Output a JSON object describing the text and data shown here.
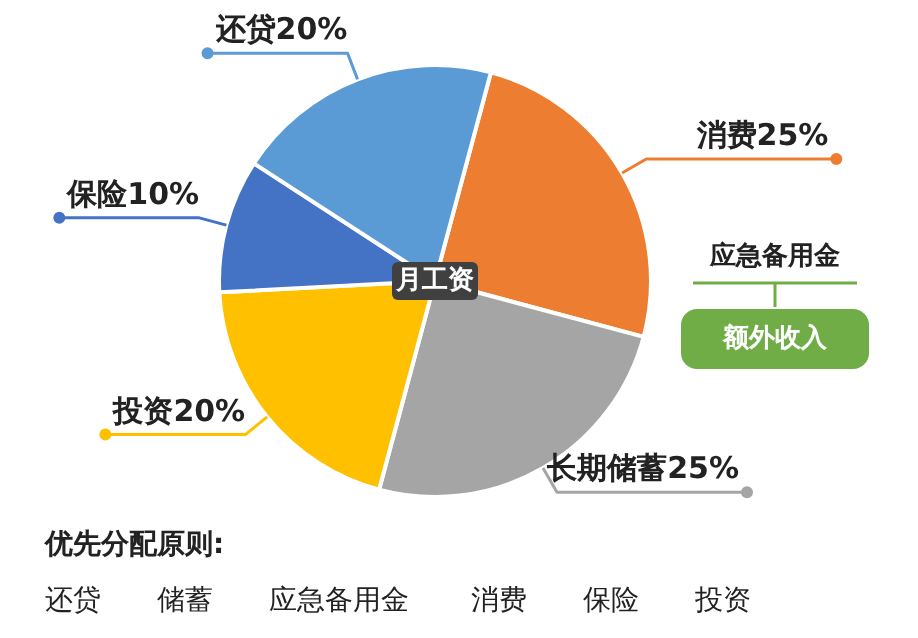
{
  "chart_data": {
    "type": "pie",
    "categories": [
      "消费25%",
      "长期储蓄25%",
      "投资20%",
      "保险10%",
      "还贷20%"
    ],
    "values": [
      25,
      25,
      20,
      10,
      20
    ],
    "colors": [
      "#ed7d31",
      "#a5a5a5",
      "#ffc000",
      "#4472c4",
      "#5b9bd5"
    ],
    "annotations": [
      "月工资",
      "应急备用金",
      "额外收入",
      "优先分配原则:",
      "还贷",
      "储蓄",
      "应急备用金",
      "消费",
      "保险",
      "投资"
    ]
  }
}
